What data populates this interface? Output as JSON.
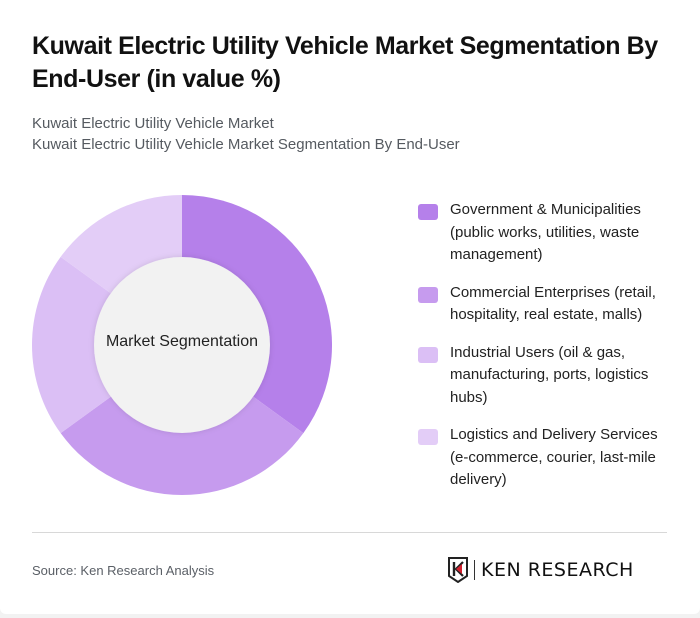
{
  "header": {
    "title": "Kuwait Electric Utility Vehicle Market Segmentation By End-User (in value %)",
    "subtitle_line1": "Kuwait Electric Utility Vehicle Market",
    "subtitle_line2": "Kuwait Electric Utility Vehicle Market Segmentation By End-User"
  },
  "chart": {
    "center_label": "Market Segmentation"
  },
  "legend": {
    "items": [
      {
        "label": "Government & Municipalities (public works, utilities, waste management)",
        "color": "#b580ea"
      },
      {
        "label": "Commercial Enterprises (retail, hospitality, real estate, malls)",
        "color": "#c69bee"
      },
      {
        "label": "Industrial Users (oil & gas, manufacturing, ports, logistics hubs)",
        "color": "#dbbff5"
      },
      {
        "label": "Logistics and Delivery Services (e-commerce, courier, last-mile delivery)",
        "color": "#e3cdf7"
      }
    ]
  },
  "footer": {
    "source": "Source: Ken Research Analysis",
    "logo_text": "KEN RESEARCH"
  },
  "chart_data": {
    "type": "pie",
    "subtype": "donut",
    "title": "Kuwait Electric Utility Vehicle Market Segmentation By End-User (in value %)",
    "center_label": "Market Segmentation",
    "categories": [
      "Government & Municipalities (public works, utilities, waste management)",
      "Commercial Enterprises (retail, hospitality, real estate, malls)",
      "Industrial Users (oil & gas, manufacturing, ports, logistics hubs)",
      "Logistics and Delivery Services (e-commerce, courier, last-mile delivery)"
    ],
    "values": [
      35,
      30,
      20,
      15
    ],
    "colors": [
      "#b580ea",
      "#c69bee",
      "#dbbff5",
      "#e3cdf7"
    ],
    "legend_position": "right",
    "data_labels": false
  }
}
